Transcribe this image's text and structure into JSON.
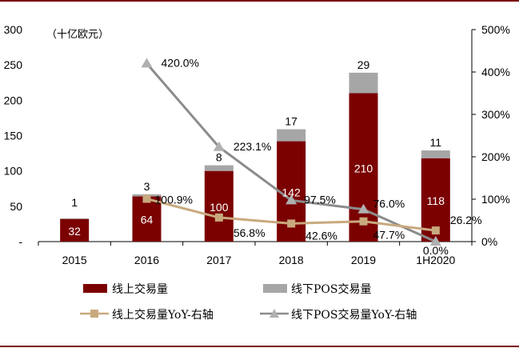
{
  "chart_data": {
    "type": "bar",
    "unit_label": "（十亿欧元）",
    "categories": [
      "2015",
      "2016",
      "2017",
      "2018",
      "2019",
      "1H2020"
    ],
    "ylim_left": [
      0,
      300
    ],
    "ylim_right": [
      0,
      500
    ],
    "left_ticks": [
      "300",
      "250",
      "200",
      "150",
      "100",
      "50",
      "-"
    ],
    "right_ticks": [
      "500%",
      "400%",
      "300%",
      "200%",
      "100%",
      "0%"
    ],
    "series": [
      {
        "name": "线上交易量",
        "kind": "stacked-bar",
        "color": "#7b0000",
        "values": [
          32,
          64,
          100,
          142,
          210,
          118
        ],
        "labels": [
          "32",
          "64",
          "100",
          "142",
          "210",
          "118"
        ]
      },
      {
        "name": "线下POS交易量",
        "kind": "stacked-bar",
        "color": "#a6a6a6",
        "values": [
          1,
          3,
          8,
          17,
          29,
          11
        ],
        "labels": [
          "1",
          "3",
          "8",
          "17",
          "29",
          "11"
        ]
      },
      {
        "name": "线上交易量YoY-右轴",
        "kind": "line",
        "axis": "right",
        "color": "#c8a97e",
        "marker": "square",
        "values": [
          null,
          100.9,
          56.8,
          42.6,
          47.7,
          26.2
        ],
        "labels": [
          "",
          "100.9%",
          "56.8%",
          "42.6%",
          "47.7%",
          "26.2%"
        ]
      },
      {
        "name": "线下POS交易量YoY-右轴",
        "kind": "line",
        "axis": "right",
        "color": "#8c8c8c",
        "marker": "triangle",
        "values": [
          null,
          420.0,
          223.1,
          97.5,
          76.0,
          0.0
        ],
        "labels": [
          "",
          "420.0%",
          "223.1%",
          "97.5%",
          "76.0%",
          "0.0%"
        ]
      }
    ],
    "legend": [
      "线上交易量",
      "线下POS交易量",
      "线上交易量YoY-右轴",
      "线下POS交易量YoY-右轴"
    ]
  }
}
